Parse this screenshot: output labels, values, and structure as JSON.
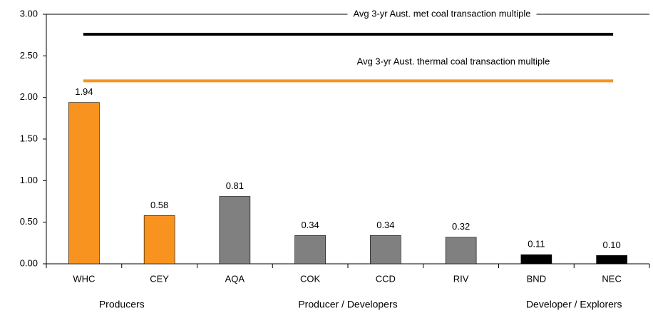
{
  "chart_data": {
    "type": "bar",
    "categories": [
      "WHC",
      "CEY",
      "AQA",
      "COK",
      "CCD",
      "RIV",
      "BND",
      "NEC"
    ],
    "values": [
      1.94,
      0.58,
      0.81,
      0.34,
      0.34,
      0.32,
      0.11,
      0.1
    ],
    "value_labels": [
      "1.94",
      "0.58",
      "0.81",
      "0.34",
      "0.34",
      "0.32",
      "0.11",
      "0.10"
    ],
    "colors": [
      "#f7931e",
      "#f7931e",
      "#808080",
      "#808080",
      "#808080",
      "#808080",
      "#000000",
      "#000000"
    ],
    "ylim": [
      0,
      3
    ],
    "yticks": [
      {
        "value": 0,
        "label": "0.00"
      },
      {
        "value": 0.5,
        "label": "0.50"
      },
      {
        "value": 1,
        "label": "1.00"
      },
      {
        "value": 1.5,
        "label": "1.50"
      },
      {
        "value": 2,
        "label": "2.00"
      },
      {
        "value": 2.5,
        "label": "2.50"
      },
      {
        "value": 3,
        "label": "3.00"
      }
    ],
    "reference_lines": [
      {
        "label": "Avg 3-yr Aust. met coal transaction multiple",
        "value": 2.76,
        "color": "#000000"
      },
      {
        "label": "Avg 3-yr Aust. thermal coal transaction multiple",
        "value": 2.2,
        "color": "#f7931e"
      }
    ],
    "groups": [
      {
        "label": "Producers",
        "count": 2
      },
      {
        "label": "Producer / Developers",
        "count": 4
      },
      {
        "label": "Developer / Explorers",
        "count": 2
      }
    ],
    "grid": false
  }
}
